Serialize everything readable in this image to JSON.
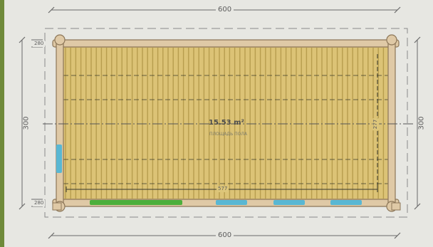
{
  "drawing": {
    "dimensions": {
      "top": "600",
      "bottom": "600",
      "left": "300",
      "right": "300",
      "left_small_top": "280",
      "left_small_bottom": "280",
      "inner_width": "577",
      "inner_height": "277"
    },
    "area_label": "15.53 m²",
    "area_sublabel": "ПЛОЩАДЬ ПОЛА"
  },
  "colors": {
    "floor": "#dcc376",
    "floor_plank_line": "#9a7f2e",
    "wall_log": "#dfc9a6",
    "wall_outline": "#8c7658",
    "dimension_line": "#6a6a6a",
    "axis_line": "#555555",
    "door": "#4caf3c",
    "window": "#59b7d3",
    "background": "#e7e7e2",
    "left_strip": "#6f8a3a"
  },
  "openings": [
    {
      "type": "door",
      "side": "bottom"
    },
    {
      "type": "window",
      "side": "bottom"
    },
    {
      "type": "window",
      "side": "bottom"
    },
    {
      "type": "window",
      "side": "bottom"
    },
    {
      "type": "window",
      "side": "left"
    }
  ]
}
